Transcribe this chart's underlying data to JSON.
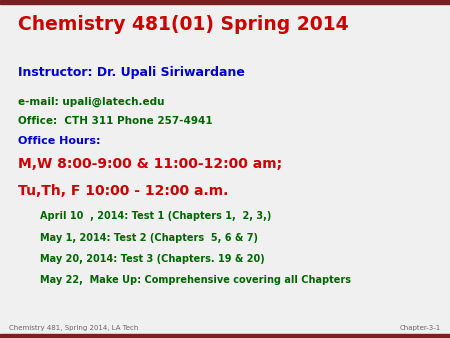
{
  "bg_color": "#f0f0f0",
  "top_bar_color": "#7B2020",
  "bottom_bar_color": "#7B2020",
  "title": "Chemistry 481(01) Spring 2014",
  "title_color": "#CC0000",
  "instructor_line": "Instructor: Dr. Upali Siriwardane",
  "instructor_color": "#0000CC",
  "email_line": "e-mail: upali@latech.edu",
  "office_line": "Office:  CTH 311 Phone 257-4941",
  "contact_color": "#006600",
  "office_hours_label": "Office Hours:",
  "office_hours_label_color": "#0000CC",
  "hours_line1": "M,W 8:00-9:00 & 11:00-12:00 am;",
  "hours_line2": "Tu,Th, F 10:00 - 12:00 a.m.",
  "hours_color": "#CC0000",
  "test_lines": [
    "April 10  , 2014: Test 1 (Chapters 1,  2, 3,)",
    "May 1, 2014: Test 2 (Chapters  5, 6 & 7)",
    "May 20, 2014: Test 3 (Chapters. 19 & 20)",
    "May 22,  Make Up: Comprehensive covering all Chapters"
  ],
  "test_color": "#006600",
  "footer_left": "Chemistry 481, Spring 2014, LA Tech",
  "footer_right": "Chapter-3-1",
  "footer_color": "#666666",
  "title_fontsize": 13.5,
  "instructor_fontsize": 9,
  "contact_fontsize": 7.5,
  "office_hours_fontsize": 8,
  "hours_fontsize": 10,
  "test_fontsize": 7,
  "footer_fontsize": 5
}
